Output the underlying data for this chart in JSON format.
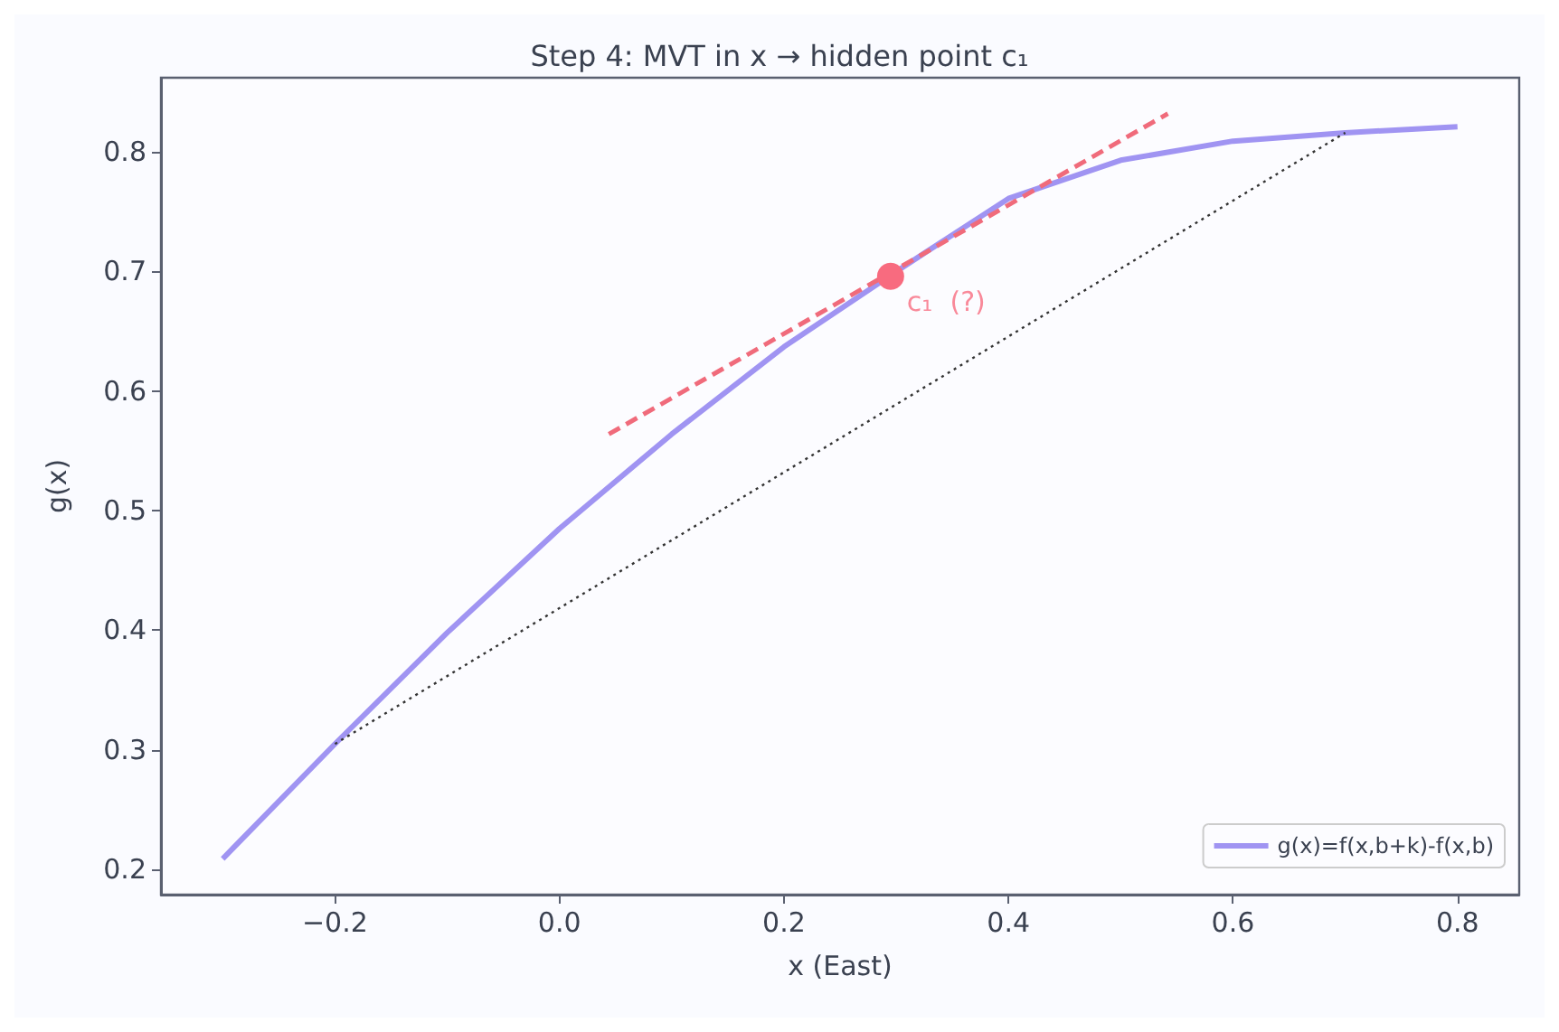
{
  "chart_data": {
    "type": "line",
    "title": "Step 4: MVT in x → hidden point c₁",
    "xlabel": "x (East)",
    "ylabel": "g(x)",
    "xlim": [
      -0.355,
      0.855
    ],
    "xticks": [
      {
        "value": -0.2,
        "label": "−0.2"
      },
      {
        "value": 0,
        "label": "0.0"
      },
      0.2,
      0.4,
      0.6,
      0.8
    ],
    "ylim": [
      0.179,
      0.862
    ],
    "yticks": [
      0.2,
      0.3,
      0.4,
      0.5,
      0.6,
      0.7,
      0.8
    ],
    "series": [
      {
        "name": "g(x)=f(x,b+k)-f(x,b)",
        "color": "#a094f2",
        "x": [
          -0.3,
          -0.2,
          -0.1,
          0.0,
          0.1,
          0.2,
          0.3,
          0.4,
          0.5,
          0.6,
          0.7,
          0.8
        ],
        "values": [
          0.209,
          0.305,
          0.398,
          0.485,
          0.564,
          0.637,
          0.7,
          0.761,
          0.793,
          0.809,
          0.816,
          0.821
        ],
        "line_style": "solid",
        "marker": "none"
      },
      {
        "color": "#333333",
        "x": [
          -0.2,
          0.7
        ],
        "values": [
          0.305,
          0.816
        ],
        "line_style": "dotted",
        "marker": "none"
      },
      {
        "color": "#f06b7b",
        "x": [
          0.044,
          0.542
        ],
        "values": [
          0.564,
          0.832
        ],
        "line_style": "dashed",
        "marker": "none"
      },
      {
        "type": "scatter",
        "color": "#f86b7f",
        "x": [
          0.295
        ],
        "values": [
          0.696
        ],
        "marker": "circle"
      }
    ],
    "annotations": [
      {
        "text": "c₁  (?)",
        "x": 0.295,
        "y": 0.696
      }
    ],
    "legend": "bottom right",
    "grid": false
  }
}
